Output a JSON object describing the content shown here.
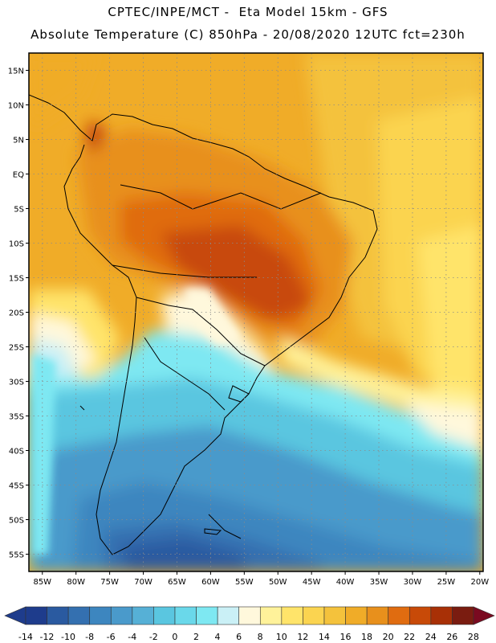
{
  "title_line1": "CPTEC/INPE/MCT -  Eta Model 15km - GFS",
  "title_line2": "Absolute Temperature (C) 850hPa - 20/08/2020 12UTC fct=230h",
  "lat_labels": [
    "15N",
    "10N",
    "5N",
    "EQ",
    "5S",
    "10S",
    "15S",
    "20S",
    "25S",
    "30S",
    "35S",
    "40S",
    "45S",
    "50S",
    "55S"
  ],
  "lat_values": [
    15,
    10,
    5,
    0,
    -5,
    -10,
    -15,
    -20,
    -25,
    -30,
    -35,
    -40,
    -45,
    -50,
    -55
  ],
  "lon_labels": [
    "85W",
    "80W",
    "75W",
    "70W",
    "65W",
    "60W",
    "55W",
    "50W",
    "45W",
    "40W",
    "35W",
    "30W",
    "25W",
    "20W"
  ],
  "lon_values": [
    -85,
    -80,
    -75,
    -70,
    -65,
    -60,
    -55,
    -50,
    -45,
    -40,
    -35,
    -30,
    -25,
    -20
  ],
  "colorbar": {
    "labels": [
      "-14",
      "-12",
      "-10",
      "-8",
      "-6",
      "-4",
      "-2",
      "0",
      "2",
      "4",
      "6",
      "8",
      "10",
      "12",
      "14",
      "16",
      "18",
      "20",
      "22",
      "24",
      "26",
      "28"
    ],
    "colors": [
      "#1e3c8c",
      "#2a5aa0",
      "#3470b0",
      "#3d86bf",
      "#4a9acb",
      "#56b0d6",
      "#5ac6e0",
      "#6ad8ea",
      "#7ee8f2",
      "#caf0f6",
      "#fff8dc",
      "#fff29a",
      "#ffe46a",
      "#fbd450",
      "#f4c23c",
      "#f0ac28",
      "#e8901c",
      "#e06c10",
      "#c84a08",
      "#a83006",
      "#7a1c10"
    ],
    "under_color": "#1e3c8c",
    "over_color": "#7a0a20"
  }
}
